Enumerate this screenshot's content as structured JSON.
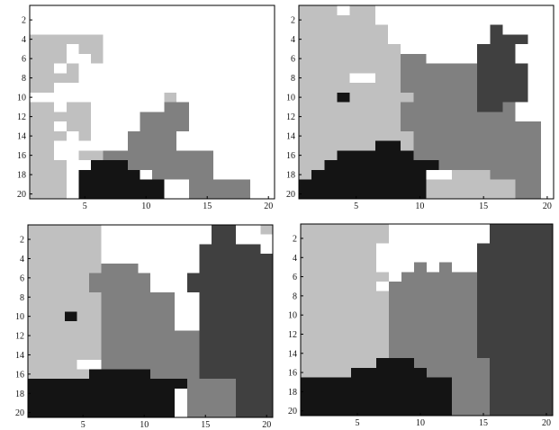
{
  "colors": {
    "class_0": "#ffffff",
    "class_1": "#c0c0c0",
    "class_2": "#808080",
    "class_3": "#404040",
    "class_4": "#141414",
    "frame": "#000000"
  },
  "chart_data": [
    {
      "type": "heatmap",
      "title": "",
      "xlabel": "",
      "ylabel": "",
      "xlim": [
        0.5,
        20.5
      ],
      "ylim": [
        0.5,
        20.5
      ],
      "xticks": [
        5,
        10,
        15,
        20
      ],
      "yticks": [
        2,
        4,
        6,
        8,
        10,
        12,
        14,
        16,
        18,
        20
      ],
      "grid": false,
      "legend": "none",
      "value_key": "0 = white, 1 = light gray, 2 = medium gray, 3 = dark gray, 4 = black",
      "rows": [
        "00000000000000000000",
        "00000000000000000000",
        "00000000000000000000",
        "11111100000000000000",
        "11101100000000000000",
        "11100100000000000000",
        "11010000000000000000",
        "11110000000000000000",
        "11000000000000000000",
        "00000000000100000000",
        "11011000000220000000",
        "11111000022220000000",
        "11011000022220000000",
        "11101000222200000000",
        "11000000222200000000",
        "11001122222222200000",
        "11100444222222200000",
        "11104444402222200000",
        "11104444444002222200",
        "11104444444002222200"
      ]
    },
    {
      "type": "heatmap",
      "title": "",
      "xlabel": "",
      "ylabel": "",
      "xlim": [
        0.5,
        20.5
      ],
      "ylim": [
        0.5,
        20.5
      ],
      "xticks": [
        5,
        10,
        15,
        20
      ],
      "yticks": [
        2,
        4,
        6,
        8,
        10,
        12,
        14,
        16,
        18,
        20
      ],
      "grid": false,
      "legend": "none",
      "value_key": "0 = white, 1 = light gray, 2 = medium gray, 3 = dark gray, 4 = black",
      "rows": [
        "11101100000000000000",
        "11111100000000000000",
        "11111110000000030000",
        "11111110000000033300",
        "11111111000000333000",
        "11111111220000333000",
        "11111111222222333300",
        "11110011222222333300",
        "11111111222222333300",
        "11141111122222333300",
        "11111111222222332000",
        "11111111222222222000",
        "11111111222222222220",
        "11111111122222222220",
        "11111144122222222220",
        "11144444422222222220",
        "11444444444222222220",
        "14444444440011122220",
        "44444444441111111220",
        "44444444441111111220"
      ]
    },
    {
      "type": "heatmap",
      "title": "",
      "xlabel": "",
      "ylabel": "",
      "xlim": [
        0.5,
        20.5
      ],
      "ylim": [
        0.5,
        20.5
      ],
      "xticks": [
        5,
        10,
        15,
        20
      ],
      "yticks": [
        2,
        4,
        6,
        8,
        10,
        12,
        14,
        16,
        18,
        20
      ],
      "grid": false,
      "legend": "none",
      "value_key": "0 = white, 1 = light gray, 2 = medium gray, 3 = dark gray, 4 = black",
      "rows": [
        "11111100000000033001",
        "11111100000000033000",
        "11111100000000333330",
        "11111100000000333333",
        "11111122200000333333",
        "11111222220003333333",
        "11111222220003333333",
        "11111122222200333333",
        "11111122222200333333",
        "11141122222200333333",
        "11111122222200333333",
        "11111122222222333333",
        "11111122222222333333",
        "11111122222222333333",
        "11110022222222333333",
        "11111444442222333333",
        "44444444444442222333",
        "44444444444402222333",
        "44444444444402222333",
        "44444444444402222333"
      ]
    },
    {
      "type": "heatmap",
      "title": "",
      "xlabel": "",
      "ylabel": "",
      "xlim": [
        0.5,
        20.5
      ],
      "ylim": [
        0.5,
        20.5
      ],
      "xticks": [
        5,
        10,
        15,
        20
      ],
      "yticks": [
        2,
        4,
        6,
        8,
        10,
        12,
        14,
        16,
        18,
        20
      ],
      "grid": false,
      "legend": "none",
      "value_key": "0 = white, 1 = light gray, 2 = medium gray, 3 = dark gray, 4 = black",
      "rows": [
        "11111110000000033333",
        "11111110000000033333",
        "11111100000000333333",
        "11111100000000333333",
        "11111100020200333333",
        "11111110222222333333",
        "11111102222222333333",
        "11111112222222333333",
        "11111112222222333333",
        "11111112222222333333",
        "11111112222222333333",
        "11111112222222333333",
        "11111112222222333333",
        "11111112222222333333",
        "11111144422222233333",
        "11114444442222233333",
        "44444444444422233333",
        "44444444444422233333",
        "44444444444422233333",
        "44444444444422233333"
      ]
    }
  ]
}
